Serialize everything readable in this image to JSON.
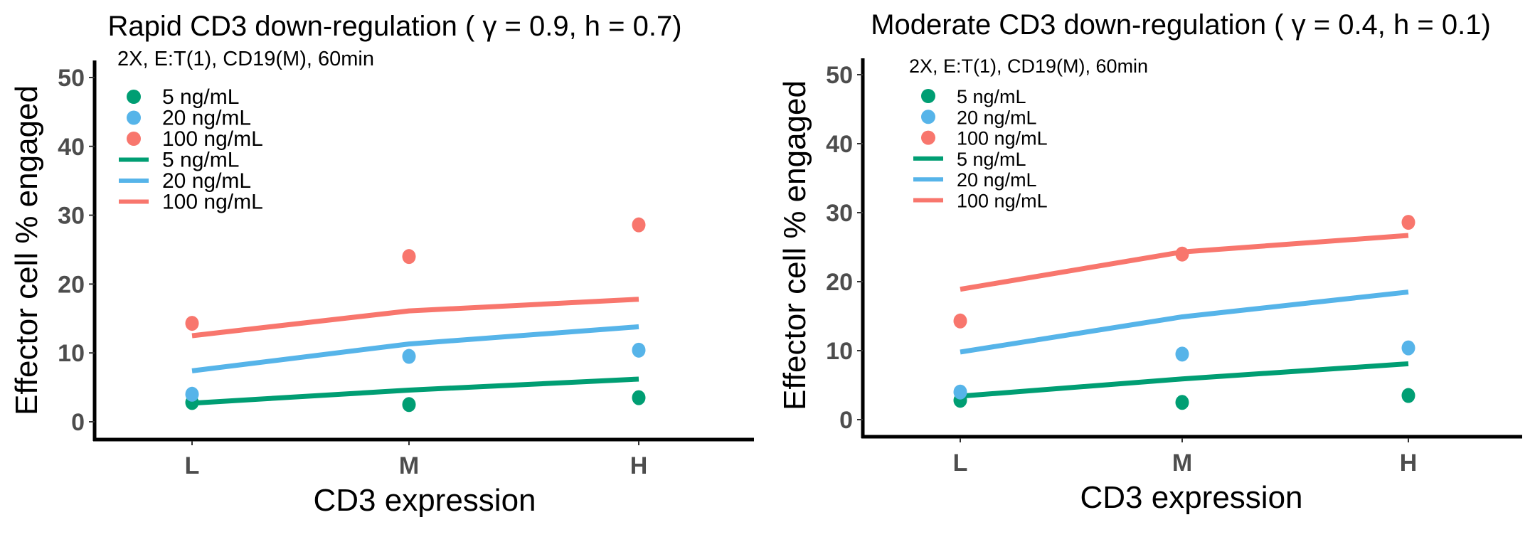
{
  "chart_data": [
    {
      "type": "scatter+line",
      "title": "Rapid CD3 down-regulation ( γ = 0.9, h = 0.7)",
      "subtitle": "2X, E:T(1), CD19(M), 60min",
      "xlabel": "CD3 expression",
      "ylabel": "Effector cell % engaged",
      "categories": [
        "L",
        "M",
        "H"
      ],
      "yticks": [
        "0",
        "10",
        "20",
        "30",
        "40",
        "50"
      ],
      "ylim": [
        0,
        50
      ],
      "grid": false,
      "legend_position": "top-left",
      "legend": [
        {
          "kind": "point",
          "label": "5 ng/mL",
          "color": "#009E73"
        },
        {
          "kind": "point",
          "label": "20 ng/mL",
          "color": "#56B4E9"
        },
        {
          "kind": "point",
          "label": "100 ng/mL",
          "color": "#F8766D"
        },
        {
          "kind": "line",
          "label": "5 ng/mL",
          "color": "#009E73"
        },
        {
          "kind": "line",
          "label": "20 ng/mL",
          "color": "#56B4E9"
        },
        {
          "kind": "line",
          "label": "100 ng/mL",
          "color": "#F8766D"
        }
      ],
      "points": [
        {
          "name": "5 ng/mL",
          "color": "#009E73",
          "values": [
            2.8,
            2.5,
            3.5
          ]
        },
        {
          "name": "20 ng/mL",
          "color": "#56B4E9",
          "values": [
            4.0,
            9.5,
            10.4
          ]
        },
        {
          "name": "100 ng/mL",
          "color": "#F8766D",
          "values": [
            14.3,
            24.0,
            28.6
          ]
        }
      ],
      "lines": [
        {
          "name": "5 ng/mL",
          "color": "#009E73",
          "values": [
            2.7,
            4.6,
            6.2
          ]
        },
        {
          "name": "20 ng/mL",
          "color": "#56B4E9",
          "values": [
            7.4,
            11.3,
            13.8
          ]
        },
        {
          "name": "100 ng/mL",
          "color": "#F8766D",
          "values": [
            12.5,
            16.1,
            17.8
          ]
        }
      ]
    },
    {
      "type": "scatter+line",
      "title": "Moderate CD3 down-regulation ( γ = 0.4, h = 0.1)",
      "subtitle": "2X, E:T(1), CD19(M), 60min",
      "xlabel": "CD3 expression",
      "ylabel": "Effector cell % engaged",
      "categories": [
        "L",
        "M",
        "H"
      ],
      "yticks": [
        "0",
        "10",
        "20",
        "30",
        "40",
        "50"
      ],
      "ylim": [
        0,
        50
      ],
      "grid": false,
      "legend_position": "top-left",
      "legend": [
        {
          "kind": "point",
          "label": "5 ng/mL",
          "color": "#009E73"
        },
        {
          "kind": "point",
          "label": "20 ng/mL",
          "color": "#56B4E9"
        },
        {
          "kind": "point",
          "label": "100 ng/mL",
          "color": "#F8766D"
        },
        {
          "kind": "line",
          "label": "5 ng/mL",
          "color": "#009E73"
        },
        {
          "kind": "line",
          "label": "20 ng/mL",
          "color": "#56B4E9"
        },
        {
          "kind": "line",
          "label": "100 ng/mL",
          "color": "#F8766D"
        }
      ],
      "points": [
        {
          "name": "5 ng/mL",
          "color": "#009E73",
          "values": [
            2.8,
            2.5,
            3.5
          ]
        },
        {
          "name": "20 ng/mL",
          "color": "#56B4E9",
          "values": [
            4.0,
            9.5,
            10.4
          ]
        },
        {
          "name": "100 ng/mL",
          "color": "#F8766D",
          "values": [
            14.3,
            24.0,
            28.6
          ]
        }
      ],
      "lines": [
        {
          "name": "5 ng/mL",
          "color": "#009E73",
          "values": [
            3.4,
            5.9,
            8.1
          ]
        },
        {
          "name": "20 ng/mL",
          "color": "#56B4E9",
          "values": [
            9.8,
            14.9,
            18.5
          ]
        },
        {
          "name": "100 ng/mL",
          "color": "#F8766D",
          "values": [
            18.9,
            24.3,
            26.7
          ]
        }
      ]
    }
  ]
}
